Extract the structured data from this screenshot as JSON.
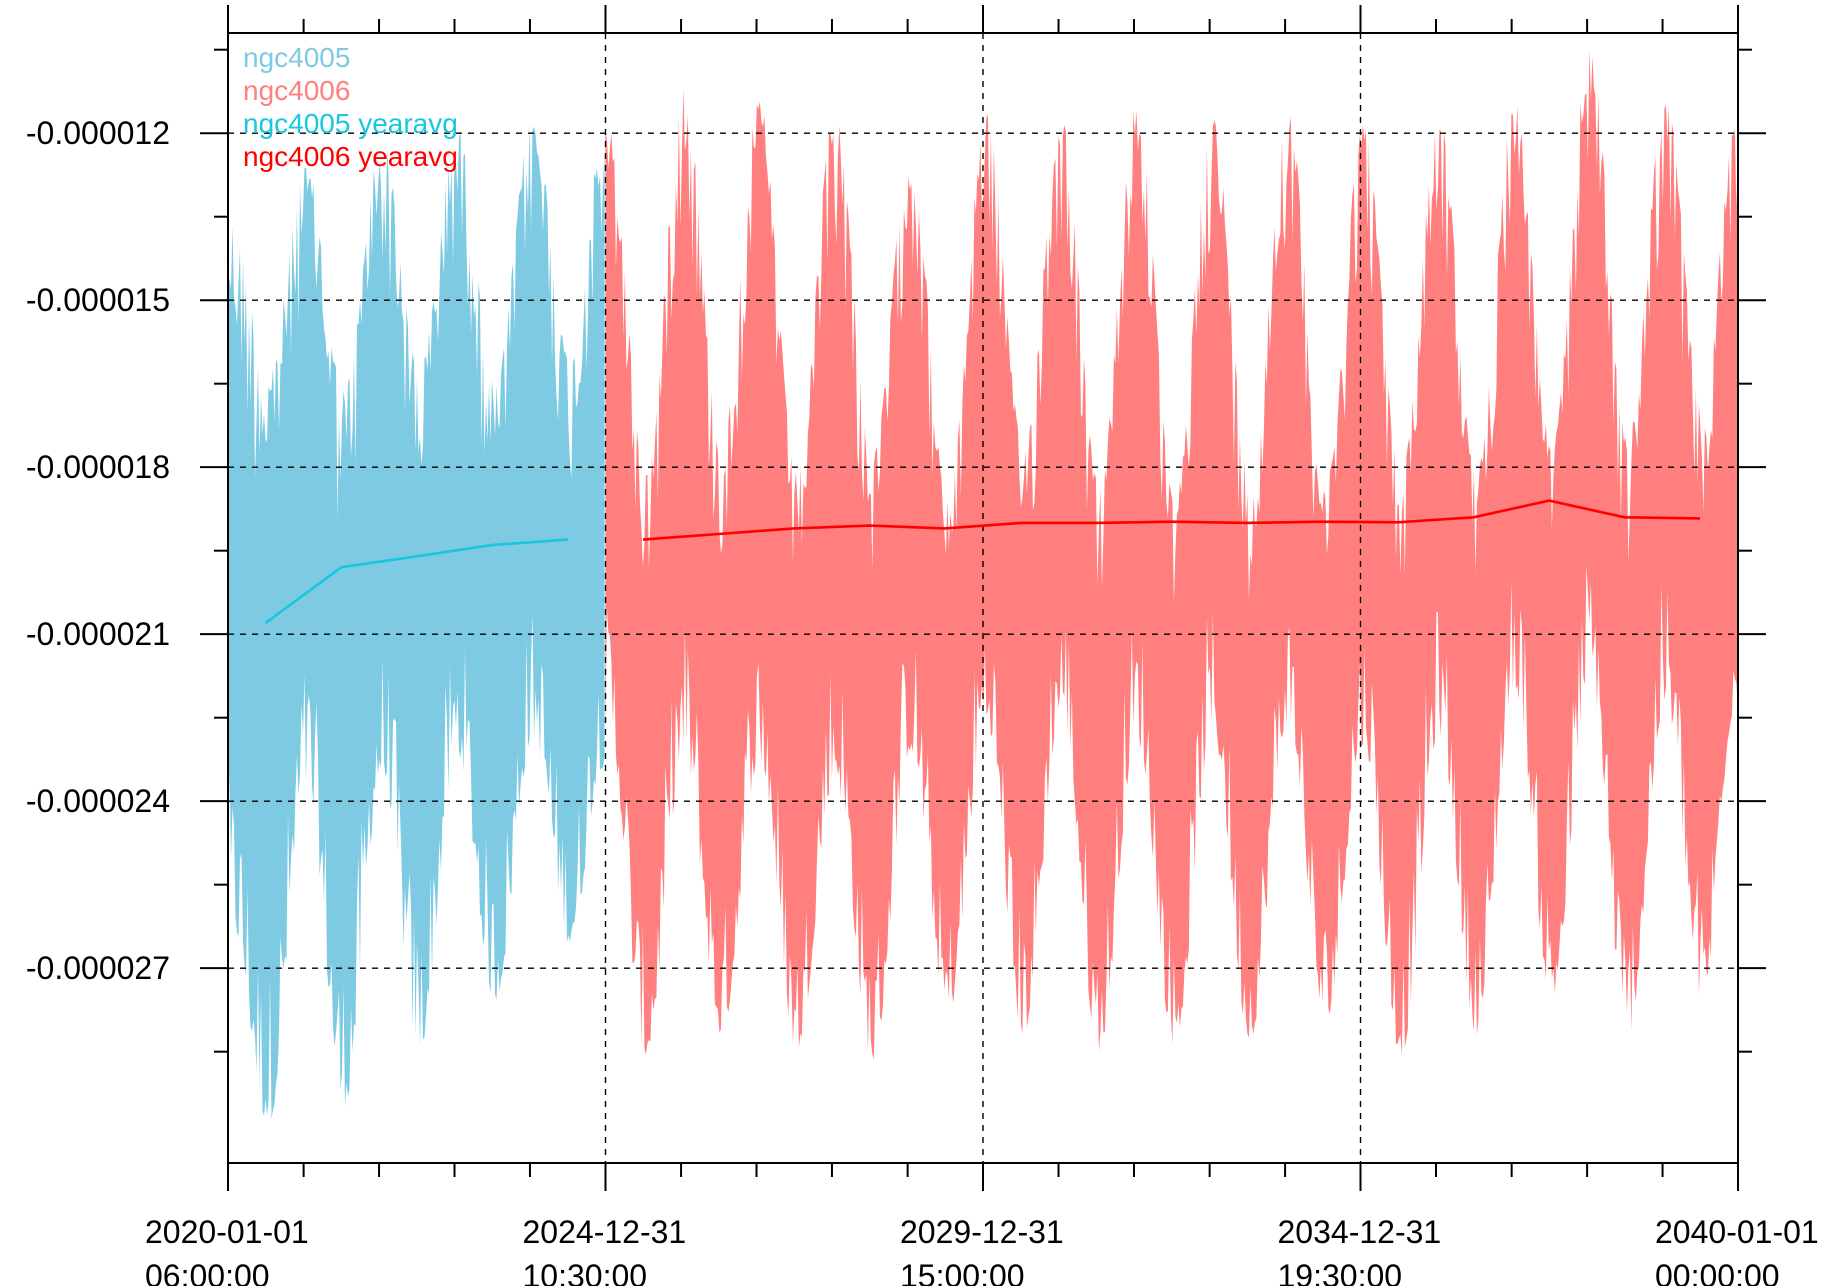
{
  "chart_data": {
    "type": "line",
    "title": "",
    "xlabel": "",
    "ylabel": "",
    "x_range": [
      "2020-01-01 06:00:00",
      "2040-01-01 00:00:00"
    ],
    "x_ticks": [
      {
        "date": "2020-01-01",
        "time": "06:00:00"
      },
      {
        "date": "2024-12-31",
        "time": "10:30:00"
      },
      {
        "date": "2029-12-31",
        "time": "15:00:00"
      },
      {
        "date": "2034-12-31",
        "time": "19:30:00"
      },
      {
        "date": "2040-01-01",
        "time": "00:00:00"
      }
    ],
    "y_ticks": [
      "-0.000012",
      "-0.000015",
      "-0.000018",
      "-0.000021",
      "-0.000024",
      "-0.000027"
    ],
    "y_tick_values": [
      -1.2e-05,
      -1.5e-05,
      -1.8e-05,
      -2.1e-05,
      -2.4e-05,
      -2.7e-05
    ],
    "ylim": [
      -3.05e-05,
      -1.02e-05
    ],
    "grid": "dashed, at major ticks",
    "legend": "top-left, inside plot",
    "series": [
      {
        "name": "ngc4005",
        "color": "#7ECAE3",
        "style": "band",
        "x_range": [
          "2020-01-01",
          "2024-12-31"
        ],
        "envelope_months": [
          [
            "2020-01",
            -1.36e-05,
            -2.62e-05
          ],
          [
            "2020-07",
            -1.62e-05,
            -2.98e-05
          ],
          [
            "2021-01",
            -1.26e-05,
            -2.38e-05
          ],
          [
            "2021-07",
            -1.66e-05,
            -2.95e-05
          ],
          [
            "2022-01",
            -1.21e-05,
            -2.36e-05
          ],
          [
            "2022-07",
            -1.62e-05,
            -2.85e-05
          ],
          [
            "2023-01",
            -1.19e-05,
            -2.32e-05
          ],
          [
            "2023-07",
            -1.65e-05,
            -2.76e-05
          ],
          [
            "2024-01",
            -1.17e-05,
            -2.29e-05
          ],
          [
            "2024-07",
            -1.61e-05,
            -2.66e-05
          ],
          [
            "2024-12",
            -1.21e-05,
            -2.34e-05
          ]
        ]
      },
      {
        "name": "ngc4006",
        "color": "#FF7F7F",
        "style": "band",
        "x_range": [
          "2024-12-31",
          "2040-01-01"
        ],
        "envelope_months": [
          [
            "2025-01",
            -1.19e-05,
            -2.28e-05
          ],
          [
            "2025-07",
            -1.81e-05,
            -2.86e-05
          ],
          [
            "2026-01",
            -1.11e-05,
            -2.32e-05
          ],
          [
            "2026-07",
            -1.76e-05,
            -2.82e-05
          ],
          [
            "2027-01",
            -1.14e-05,
            -2.33e-05
          ],
          [
            "2027-07",
            -1.81e-05,
            -2.85e-05
          ],
          [
            "2028-01",
            -1.16e-05,
            -2.36e-05
          ],
          [
            "2028-07",
            -1.78e-05,
            -2.87e-05
          ],
          [
            "2029-01",
            -1.22e-05,
            -2.31e-05
          ],
          [
            "2029-07",
            -1.86e-05,
            -2.79e-05
          ],
          [
            "2030-01",
            -1.16e-05,
            -2.26e-05
          ],
          [
            "2030-07",
            -1.76e-05,
            -2.82e-05
          ],
          [
            "2031-01",
            -1.17e-05,
            -2.24e-05
          ],
          [
            "2031-07",
            -1.83e-05,
            -2.85e-05
          ],
          [
            "2032-01",
            -1.14e-05,
            -2.29e-05
          ],
          [
            "2032-07",
            -1.86e-05,
            -2.84e-05
          ],
          [
            "2033-01",
            -1.17e-05,
            -2.28e-05
          ],
          [
            "2033-07",
            -1.82e-05,
            -2.83e-05
          ],
          [
            "2034-01",
            -1.16e-05,
            -2.26e-05
          ],
          [
            "2034-07",
            -1.83e-05,
            -2.8e-05
          ],
          [
            "2035-01",
            -1.18e-05,
            -2.3e-05
          ],
          [
            "2035-07",
            -1.81e-05,
            -2.86e-05
          ],
          [
            "2036-01",
            -1.17e-05,
            -2.28e-05
          ],
          [
            "2036-07",
            -1.81e-05,
            -2.82e-05
          ],
          [
            "2037-01",
            -1.14e-05,
            -2.2e-05
          ],
          [
            "2037-07",
            -1.76e-05,
            -2.76e-05
          ],
          [
            "2038-01",
            -1.04e-05,
            -2.18e-05
          ],
          [
            "2038-07",
            -1.75e-05,
            -2.83e-05
          ],
          [
            "2039-01",
            -1.14e-05,
            -2.23e-05
          ],
          [
            "2039-07",
            -1.7e-05,
            -2.77e-05
          ],
          [
            "2039-12",
            -1.19e-05,
            -2.24e-05
          ]
        ]
      },
      {
        "name": "ngc4005 yearavg",
        "color": "#18C7DF",
        "style": "line",
        "x": [
          "2020-07-01",
          "2021-07-01",
          "2022-07-01",
          "2023-07-01",
          "2024-07-01"
        ],
        "values": [
          -2.08e-05,
          -1.98e-05,
          -1.96e-05,
          -1.94e-05,
          -1.93e-05
        ]
      },
      {
        "name": "ngc4006 yearavg",
        "color": "#FF0000",
        "style": "line",
        "x": [
          "2025-07-01",
          "2026-07-01",
          "2027-07-01",
          "2028-07-01",
          "2029-07-01",
          "2030-07-01",
          "2031-07-01",
          "2032-07-01",
          "2033-07-01",
          "2034-07-01",
          "2035-07-01",
          "2036-07-01",
          "2037-07-01",
          "2038-07-01",
          "2039-07-01"
        ],
        "values": [
          -1.93e-05,
          -1.92e-05,
          -1.91e-05,
          -1.905e-05,
          -1.91e-05,
          -1.9e-05,
          -1.9e-05,
          -1.898e-05,
          -1.9e-05,
          -1.898e-05,
          -1.899e-05,
          -1.89e-05,
          -1.86e-05,
          -1.89e-05,
          -1.892e-05
        ]
      }
    ]
  }
}
